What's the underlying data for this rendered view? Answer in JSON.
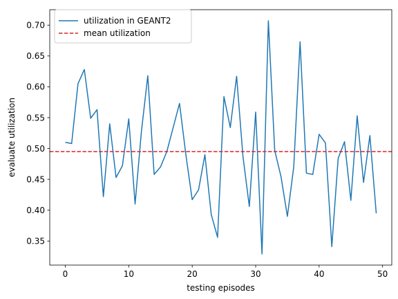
{
  "chart_data": {
    "type": "line",
    "xlabel": "testing episodes",
    "ylabel": "evaluate utilization",
    "xlim": [
      -2.45,
      51.45
    ],
    "ylim": [
      0.311,
      0.725
    ],
    "xticks": [
      0,
      10,
      20,
      30,
      40,
      50
    ],
    "yticks": [
      0.35,
      0.4,
      0.45,
      0.5,
      0.55,
      0.6,
      0.65,
      0.7
    ],
    "grid": false,
    "legend_position": "top-left",
    "series": [
      {
        "name": "utilization in GEANT2",
        "color": "#1f77b4",
        "style": "solid",
        "x": [
          0,
          1,
          2,
          3,
          4,
          5,
          6,
          7,
          8,
          9,
          10,
          11,
          12,
          13,
          14,
          15,
          16,
          17,
          18,
          19,
          20,
          21,
          22,
          23,
          24,
          25,
          26,
          27,
          28,
          29,
          30,
          31,
          32,
          33,
          34,
          35,
          36,
          37,
          38,
          39,
          40,
          41,
          42,
          43,
          44,
          45,
          46,
          47,
          48,
          49
        ],
        "values": [
          0.51,
          0.508,
          0.605,
          0.628,
          0.549,
          0.563,
          0.422,
          0.54,
          0.453,
          0.472,
          0.548,
          0.41,
          0.528,
          0.618,
          0.458,
          0.47,
          0.495,
          0.534,
          0.573,
          0.49,
          0.417,
          0.433,
          0.49,
          0.393,
          0.356,
          0.584,
          0.534,
          0.617,
          0.487,
          0.406,
          0.559,
          0.329,
          0.707,
          0.497,
          0.454,
          0.39,
          0.47,
          0.673,
          0.46,
          0.458,
          0.523,
          0.509,
          0.341,
          0.484,
          0.511,
          0.416,
          0.553,
          0.445,
          0.521,
          0.395
        ]
      },
      {
        "name": "mean utilization",
        "color": "#d62728",
        "style": "dashed",
        "y": 0.495
      }
    ]
  }
}
